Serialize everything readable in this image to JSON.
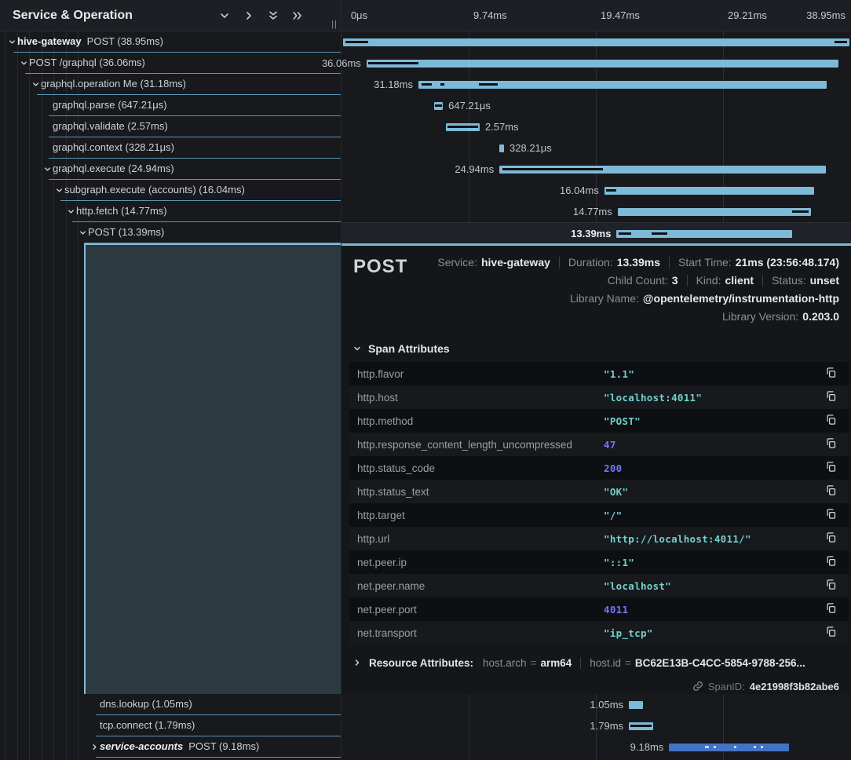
{
  "header": {
    "title": "Service & Operation",
    "resizer": "||",
    "icons": [
      "collapse-one-icon",
      "expand-one-icon",
      "collapse-all-icon",
      "expand-all-icon"
    ],
    "ticks": [
      "0μs",
      "9.74ms",
      "19.47ms",
      "29.21ms",
      "38.95ms"
    ]
  },
  "colors": {
    "bar": "#7dbad8",
    "bar_alt": "#4273c4",
    "bar_mark": "#101216",
    "bar_mark_light": "#cdd6e4",
    "selection_bg": "#2b3941",
    "accent_border": "#86bad4",
    "row_divider": "#5d96b5",
    "string_value": "#72d1ce",
    "number_value": "#7577f5"
  },
  "spans": [
    {
      "service": "hive-gateway",
      "name": "POST",
      "duration": "38.95ms",
      "level": 0,
      "expander": "down",
      "bar": {
        "start": 0.3,
        "width": 99.4,
        "label": "",
        "labelSide": "none",
        "marks": [
          [
            0.5,
            5
          ],
          [
            97,
            99.5
          ]
        ]
      }
    },
    {
      "service": "",
      "name": "POST /graphql",
      "duration": "36.06ms",
      "level": 1,
      "expander": "down",
      "bar": {
        "start": 4.9,
        "width": 92.6,
        "label": "36.06ms",
        "labelSide": "left",
        "marks": [
          [
            0.4,
            11
          ]
        ]
      }
    },
    {
      "service": "",
      "name": "graphql.operation Me",
      "duration": "31.18ms",
      "level": 2,
      "expander": "down",
      "bar": {
        "start": 15.1,
        "width": 80.1,
        "label": "31.18ms",
        "labelSide": "left",
        "marks": [
          [
            0.7,
            3.3
          ],
          [
            5.3,
            6.3
          ],
          [
            14.8,
            19.5
          ]
        ]
      }
    },
    {
      "service": "",
      "name": "graphql.parse",
      "duration": "647.21μs",
      "level": 3,
      "expander": "none",
      "bar": {
        "start": 18.2,
        "width": 1.7,
        "label": "647.21μs",
        "labelSide": "right",
        "marks": [
          [
            12,
            88
          ]
        ]
      }
    },
    {
      "service": "",
      "name": "graphql.validate",
      "duration": "2.57ms",
      "level": 3,
      "expander": "none",
      "bar": {
        "start": 20.5,
        "width": 6.6,
        "label": "2.57ms",
        "labelSide": "right",
        "marks": [
          [
            4,
            96
          ]
        ]
      }
    },
    {
      "service": "",
      "name": "graphql.context",
      "duration": "328.21μs",
      "level": 3,
      "expander": "none",
      "bar": {
        "start": 31.0,
        "width": 0.9,
        "label": "328.21μs",
        "labelSide": "right",
        "marks": []
      }
    },
    {
      "service": "",
      "name": "graphql.execute",
      "duration": "24.94ms",
      "level": 3,
      "expander": "down",
      "bar": {
        "start": 31.0,
        "width": 64.0,
        "label": "24.94ms",
        "labelSide": "left",
        "marks": [
          [
            0.8,
            31.8
          ]
        ]
      }
    },
    {
      "service": "",
      "name": "subgraph.execute (accounts)",
      "duration": "16.04ms",
      "level": 4,
      "expander": "down",
      "bar": {
        "start": 51.6,
        "width": 41.1,
        "label": "16.04ms",
        "labelSide": "left",
        "marks": [
          [
            0.8,
            5.6
          ]
        ]
      }
    },
    {
      "service": "",
      "name": "http.fetch",
      "duration": "14.77ms",
      "level": 5,
      "expander": "down",
      "bar": {
        "start": 54.2,
        "width": 37.9,
        "label": "14.77ms",
        "labelSide": "left",
        "marks": [
          [
            90.5,
            98.8
          ]
        ]
      }
    },
    {
      "service": "",
      "name": "POST",
      "duration": "13.39ms",
      "level": 6,
      "expander": "down",
      "selected": true,
      "bar": {
        "start": 54.0,
        "width": 34.4,
        "label": "13.39ms",
        "labelSide": "left",
        "marks": [
          [
            1.2,
            8.3
          ],
          [
            19.8,
            28.8
          ]
        ]
      }
    }
  ],
  "bottom_spans": [
    {
      "service": "",
      "name": "dns.lookup",
      "duration": "1.05ms",
      "level": 7,
      "expander": "none",
      "bar": {
        "start": 56.4,
        "width": 2.8,
        "label": "1.05ms",
        "labelSide": "left",
        "marks": []
      }
    },
    {
      "service": "",
      "name": "tcp.connect",
      "duration": "1.79ms",
      "level": 7,
      "expander": "none",
      "bar": {
        "start": 56.4,
        "width": 4.7,
        "label": "1.79ms",
        "labelSide": "left",
        "marks": [
          [
            6,
            94
          ]
        ]
      }
    },
    {
      "service": "service-accounts",
      "serviceItalic": true,
      "name": "POST",
      "duration": "9.18ms",
      "level": 7,
      "expander": "right",
      "bar": {
        "start": 64.3,
        "width": 23.6,
        "label": "9.18ms",
        "labelSide": "left",
        "alt": true,
        "marks": [
          [
            30,
            33
          ],
          [
            37,
            39
          ],
          [
            54,
            56
          ],
          [
            70,
            72
          ],
          [
            76,
            78
          ]
        ]
      }
    }
  ],
  "detail": {
    "title": "POST",
    "meta_lines": [
      [
        {
          "label": "Service:",
          "value": "hive-gateway"
        },
        {
          "label": "Duration:",
          "value": "13.39ms"
        },
        {
          "label": "Start Time:",
          "value": "21ms (23:56:48.174)"
        }
      ],
      [
        {
          "label": "Child Count:",
          "value": "3"
        },
        {
          "label": "Kind:",
          "value": "client"
        },
        {
          "label": "Status:",
          "value": "unset"
        }
      ],
      [
        {
          "label": "Library Name:",
          "value": "@opentelemetry/instrumentation-http"
        }
      ],
      [
        {
          "label": "Library Version:",
          "value": "0.203.0"
        }
      ]
    ],
    "span_attributes_title": "Span Attributes",
    "attributes": [
      {
        "key": "http.flavor",
        "value": "\"1.1\"",
        "type": "string"
      },
      {
        "key": "http.host",
        "value": "\"localhost:4011\"",
        "type": "string"
      },
      {
        "key": "http.method",
        "value": "\"POST\"",
        "type": "string"
      },
      {
        "key": "http.response_content_length_uncompressed",
        "value": "47",
        "type": "number"
      },
      {
        "key": "http.status_code",
        "value": "200",
        "type": "number"
      },
      {
        "key": "http.status_text",
        "value": "\"OK\"",
        "type": "string"
      },
      {
        "key": "http.target",
        "value": "\"/\"",
        "type": "string"
      },
      {
        "key": "http.url",
        "value": "\"http://localhost:4011/\"",
        "type": "string"
      },
      {
        "key": "net.peer.ip",
        "value": "\"::1\"",
        "type": "string"
      },
      {
        "key": "net.peer.name",
        "value": "\"localhost\"",
        "type": "string"
      },
      {
        "key": "net.peer.port",
        "value": "4011",
        "type": "number"
      },
      {
        "key": "net.transport",
        "value": "\"ip_tcp\"",
        "type": "string"
      }
    ],
    "resource": {
      "title": "Resource Attributes:",
      "items": [
        {
          "key": "host.arch",
          "value": "arm64"
        },
        {
          "key": "host.id",
          "value": "BC62E13B-C4CC-5854-9788-256..."
        }
      ]
    },
    "span_id_label": "SpanID:",
    "span_id": "4e21998f3b82abe6"
  }
}
